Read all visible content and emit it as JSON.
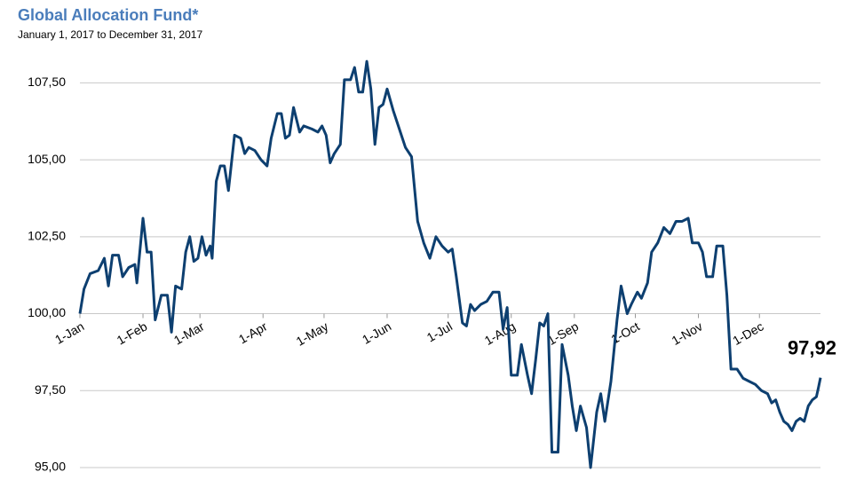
{
  "chart_data": {
    "type": "line",
    "title": "Global Allocation Fund*",
    "subtitle": "January 1, 2017 to December 31, 2017",
    "xlim": [
      "2017-01-01",
      "2017-12-31"
    ],
    "xticks": [
      {
        "value": "2017-01-01",
        "label": "1-Jan"
      },
      {
        "value": "2017-02-01",
        "label": "1-Feb"
      },
      {
        "value": "2017-03-01",
        "label": "1-Mar"
      },
      {
        "value": "2017-04-01",
        "label": "1-Apr"
      },
      {
        "value": "2017-05-01",
        "label": "1-May"
      },
      {
        "value": "2017-06-01",
        "label": "1-Jun"
      },
      {
        "value": "2017-07-01",
        "label": "1-Jul"
      },
      {
        "value": "2017-08-01",
        "label": "1-Aug"
      },
      {
        "value": "2017-09-01",
        "label": "1-Sep"
      },
      {
        "value": "2017-10-01",
        "label": "1-Oct"
      },
      {
        "value": "2017-11-01",
        "label": "1-Nov"
      },
      {
        "value": "2017-12-01",
        "label": "1-Dec"
      }
    ],
    "ylim": [
      95,
      108.75
    ],
    "yticks": [
      {
        "value": 95,
        "label": "95,00"
      },
      {
        "value": 97.5,
        "label": "97,50"
      },
      {
        "value": 100,
        "label": "100,00"
      },
      {
        "value": 102.5,
        "label": "102,50"
      },
      {
        "value": 105,
        "label": "105,00"
      },
      {
        "value": 107.5,
        "label": "107,50"
      }
    ],
    "grid": true,
    "x": [
      "2017-01-01",
      "2017-01-03",
      "2017-01-06",
      "2017-01-10",
      "2017-01-13",
      "2017-01-15",
      "2017-01-17",
      "2017-01-20",
      "2017-01-22",
      "2017-01-25",
      "2017-01-28",
      "2017-01-29",
      "2017-02-01",
      "2017-02-03",
      "2017-02-05",
      "2017-02-07",
      "2017-02-10",
      "2017-02-13",
      "2017-02-15",
      "2017-02-17",
      "2017-02-20",
      "2017-02-22",
      "2017-02-24",
      "2017-02-26",
      "2017-02-28",
      "2017-03-02",
      "2017-03-04",
      "2017-03-06",
      "2017-03-07",
      "2017-03-09",
      "2017-03-11",
      "2017-03-13",
      "2017-03-15",
      "2017-03-18",
      "2017-03-21",
      "2017-03-23",
      "2017-03-25",
      "2017-03-28",
      "2017-03-31",
      "2017-04-03",
      "2017-04-05",
      "2017-04-08",
      "2017-04-10",
      "2017-04-12",
      "2017-04-14",
      "2017-04-16",
      "2017-04-19",
      "2017-04-21",
      "2017-04-25",
      "2017-04-28",
      "2017-04-30",
      "2017-05-02",
      "2017-05-04",
      "2017-05-06",
      "2017-05-09",
      "2017-05-11",
      "2017-05-14",
      "2017-05-16",
      "2017-05-18",
      "2017-05-20",
      "2017-05-22",
      "2017-05-24",
      "2017-05-26",
      "2017-05-28",
      "2017-05-30",
      "2017-06-01",
      "2017-06-04",
      "2017-06-07",
      "2017-06-10",
      "2017-06-13",
      "2017-06-16",
      "2017-06-19",
      "2017-06-22",
      "2017-06-25",
      "2017-06-28",
      "2017-07-01",
      "2017-07-03",
      "2017-07-05",
      "2017-07-08",
      "2017-07-10",
      "2017-07-12",
      "2017-07-14",
      "2017-07-17",
      "2017-07-20",
      "2017-07-23",
      "2017-07-26",
      "2017-07-28",
      "2017-07-30",
      "2017-08-01",
      "2017-08-04",
      "2017-08-06",
      "2017-08-09",
      "2017-08-11",
      "2017-08-13",
      "2017-08-15",
      "2017-08-17",
      "2017-08-19",
      "2017-08-21",
      "2017-08-24",
      "2017-08-26",
      "2017-08-29",
      "2017-08-31",
      "2017-09-02",
      "2017-09-04",
      "2017-09-07",
      "2017-09-09",
      "2017-09-12",
      "2017-09-14",
      "2017-09-16",
      "2017-09-19",
      "2017-09-22",
      "2017-09-24",
      "2017-09-27",
      "2017-09-29",
      "2017-10-02",
      "2017-10-04",
      "2017-10-07",
      "2017-10-09",
      "2017-10-12",
      "2017-10-15",
      "2017-10-18",
      "2017-10-21",
      "2017-10-24",
      "2017-10-27",
      "2017-10-29",
      "2017-11-01",
      "2017-11-03",
      "2017-11-05",
      "2017-11-08",
      "2017-11-10",
      "2017-11-13",
      "2017-11-15",
      "2017-11-17",
      "2017-11-20",
      "2017-11-23",
      "2017-11-26",
      "2017-11-29",
      "2017-12-02",
      "2017-12-05",
      "2017-12-07",
      "2017-12-09",
      "2017-12-11",
      "2017-12-13",
      "2017-12-15",
      "2017-12-17",
      "2017-12-19",
      "2017-12-21",
      "2017-12-23",
      "2017-12-25",
      "2017-12-27",
      "2017-12-29",
      "2017-12-30",
      "2017-12-31"
    ],
    "series": [
      {
        "name": "Global Allocation Fund",
        "color": "#0d3f70",
        "values": [
          100.0,
          100.8,
          101.3,
          101.4,
          101.8,
          100.9,
          101.9,
          101.9,
          101.2,
          101.5,
          101.6,
          101.0,
          103.1,
          102.0,
          102.0,
          99.8,
          100.6,
          100.6,
          99.4,
          100.9,
          100.8,
          102.0,
          102.5,
          101.7,
          101.8,
          102.5,
          101.9,
          102.2,
          101.8,
          104.3,
          104.8,
          104.8,
          104.0,
          105.8,
          105.7,
          105.2,
          105.4,
          105.3,
          105.0,
          104.8,
          105.7,
          106.5,
          106.5,
          105.7,
          105.8,
          106.7,
          105.9,
          106.1,
          106.0,
          105.9,
          106.1,
          105.8,
          104.9,
          105.2,
          105.5,
          107.6,
          107.6,
          108.0,
          107.2,
          107.2,
          108.2,
          107.3,
          105.5,
          106.7,
          106.8,
          107.3,
          106.6,
          106.0,
          105.4,
          105.1,
          103.0,
          102.3,
          101.8,
          102.5,
          102.2,
          102.0,
          102.1,
          101.2,
          99.7,
          99.6,
          100.3,
          100.1,
          100.3,
          100.4,
          100.7,
          100.7,
          99.5,
          100.2,
          98.0,
          98.0,
          99.0,
          98.0,
          97.4,
          98.5,
          99.7,
          99.6,
          100.0,
          95.5,
          95.5,
          99.0,
          98.0,
          97.0,
          96.2,
          97.0,
          96.3,
          95.0,
          96.8,
          97.4,
          96.5,
          97.8,
          99.8,
          100.9,
          100.0,
          100.3,
          100.7,
          100.5,
          101.0,
          102.0,
          102.3,
          102.8,
          102.6,
          103.0,
          103.0,
          103.1,
          102.3,
          102.3,
          102.0,
          101.2,
          101.2,
          102.2,
          102.2,
          100.6,
          98.2,
          98.2,
          97.9,
          97.8,
          97.7,
          97.5,
          97.4,
          97.1,
          97.2,
          96.8,
          96.5,
          96.4,
          96.2,
          96.5,
          96.6,
          96.5,
          97.0,
          97.2,
          97.3,
          97.6,
          97.92
        ]
      }
    ],
    "annotations": [
      {
        "text": "97,92",
        "x": "2017-12-31",
        "value": 97.92
      }
    ]
  }
}
